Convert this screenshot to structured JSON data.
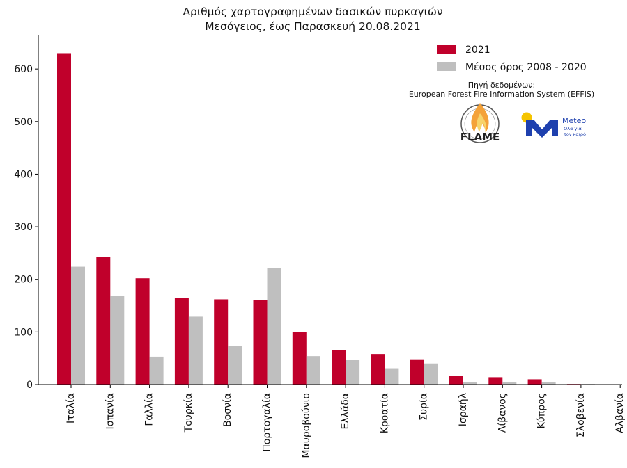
{
  "chart_data": {
    "type": "bar",
    "title_lines": [
      "Αριθμός χαρτογραφημένων δασικών πυρκαγιών",
      "Μεσόγειος, έως Παρασκευή 20.08.2021"
    ],
    "categories": [
      "Ιταλία",
      "Ισπανία",
      "Γαλλία",
      "Τουρκία",
      "Βοσνία",
      "Πορτογαλία",
      "Μαυροβούνιο",
      "Ελλάδα",
      "Κροατία",
      "Συρία",
      "Ισραήλ",
      "Λίβανος",
      "Κύπρος",
      "Σλοβενία",
      "Αλβανία"
    ],
    "series": [
      {
        "name": "2021",
        "color": "#c0002b",
        "values": [
          630,
          242,
          202,
          165,
          162,
          160,
          100,
          66,
          58,
          48,
          17,
          14,
          10,
          1,
          0
        ]
      },
      {
        "name": "Μέσος όρος 2008 - 2020",
        "color": "#bfbfbf",
        "values": [
          224,
          168,
          53,
          129,
          73,
          222,
          54,
          47,
          31,
          40,
          4,
          4,
          5,
          1,
          0
        ]
      }
    ],
    "yticks": [
      0,
      100,
      200,
      300,
      400,
      500,
      600
    ],
    "ylim": [
      0,
      665
    ],
    "grid": false,
    "legend_position": "top-right"
  },
  "source": {
    "line1": "Πηγή δεδομένων:",
    "line2": "European Forest Fire Information System (EFFIS)"
  },
  "logos": {
    "flame": {
      "text": "FLAME",
      "icon": "flame-logo-icon"
    },
    "meteo": {
      "text": "Meteo",
      "tagline_1": "Όλα για",
      "tagline_2": "τον καιρό",
      "icon": "meteo-logo-icon"
    }
  }
}
